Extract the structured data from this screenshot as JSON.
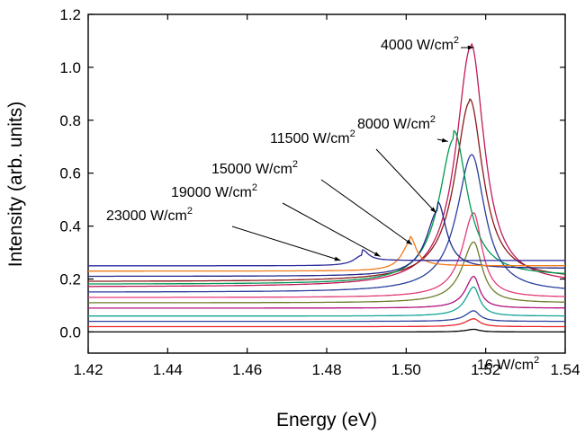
{
  "chart_data": {
    "type": "line",
    "title": "",
    "xlabel": "Energy (eV)",
    "ylabel": "Intensity (arb. units)",
    "xlim": [
      1.42,
      1.54
    ],
    "ylim": [
      -0.08,
      1.2
    ],
    "x_ticks": [
      1.42,
      1.44,
      1.46,
      1.48,
      1.5,
      1.52,
      1.54
    ],
    "x_tick_labels": [
      "1.42",
      "1.44",
      "1.46",
      "1.48",
      "1.50",
      "1.52",
      "1.54"
    ],
    "y_ticks": [
      0.0,
      0.2,
      0.4,
      0.6,
      0.8,
      1.0,
      1.2
    ],
    "y_tick_labels": [
      "0.0",
      "0.2",
      "0.4",
      "0.6",
      "0.8",
      "1.0",
      "1.2"
    ],
    "grid": false,
    "legend": "none",
    "series": [
      {
        "color": "#000000",
        "baseline": 0.0,
        "peak_x": 1.517,
        "peak_y": 0.01,
        "tail": 0.0
      },
      {
        "color": "#e8232a",
        "baseline": 0.02,
        "peak_x": 1.517,
        "peak_y": 0.05,
        "tail": 0.02
      },
      {
        "color": "#2a3f9d",
        "baseline": 0.04,
        "peak_x": 1.517,
        "peak_y": 0.08,
        "tail": 0.04
      },
      {
        "color": "#14a396",
        "baseline": 0.06,
        "peak_x": 1.517,
        "peak_y": 0.17,
        "tail": 0.06
      },
      {
        "color": "#b0107f",
        "baseline": 0.09,
        "peak_x": 1.517,
        "peak_y": 0.21,
        "tail": 0.09
      },
      {
        "color": "#6b7d28",
        "baseline": 0.11,
        "peak_x": 1.517,
        "peak_y": 0.34,
        "tail": 0.11
      },
      {
        "color": "#e33b78",
        "baseline": 0.13,
        "peak_x": 1.517,
        "peak_y": 0.45,
        "tail": 0.13
      },
      {
        "color": "#2a3f9d",
        "baseline": 0.15,
        "peak_x": 1.5165,
        "peak_y": 0.67,
        "tail": 0.15
      },
      {
        "color": "#c2185b",
        "baseline": 0.17,
        "peak_x": 1.5163,
        "peak_y": 1.08,
        "tail": 0.18
      },
      {
        "color": "#8b1a1a",
        "baseline": 0.19,
        "peak_x": 1.516,
        "peak_y": 0.87,
        "tail": 0.2
      },
      {
        "color": "#009950",
        "baseline": 0.18,
        "peak_x": 1.512,
        "peak_y": 0.73,
        "tail": 0.21
      },
      {
        "color": "#1f2a8a",
        "baseline": 0.21,
        "peak_x": 1.508,
        "peak_y": 0.46,
        "tail": 0.24
      },
      {
        "color": "#f07a1a",
        "baseline": 0.23,
        "peak_x": 1.501,
        "peak_y": 0.34,
        "tail": 0.25
      },
      {
        "color": "#2a2a9d",
        "baseline": 0.25,
        "peak_x": 1.489,
        "peak_y": 0.29,
        "tail": 0.27
      }
    ],
    "annotations": [
      {
        "base": "4000 W/cm",
        "sup": "2",
        "arrow_to": [
          1.517,
          1.075
        ]
      },
      {
        "base": "8000 W/cm",
        "sup": "2",
        "arrow_to": [
          1.5105,
          0.72
        ]
      },
      {
        "base": "11500 W/cm",
        "sup": "2",
        "arrow_to": [
          1.5075,
          0.45
        ]
      },
      {
        "base": "15000 W/cm",
        "sup": "2",
        "arrow_to": [
          1.5015,
          0.33
        ]
      },
      {
        "base": "19000 W/cm",
        "sup": "2",
        "arrow_to": [
          1.4935,
          0.285
        ]
      },
      {
        "base": "23000 W/cm",
        "sup": "2",
        "arrow_to": [
          1.4835,
          0.27
        ]
      },
      {
        "base": "16 W/cm",
        "sup": "2",
        "arrow_to": null
      }
    ]
  }
}
